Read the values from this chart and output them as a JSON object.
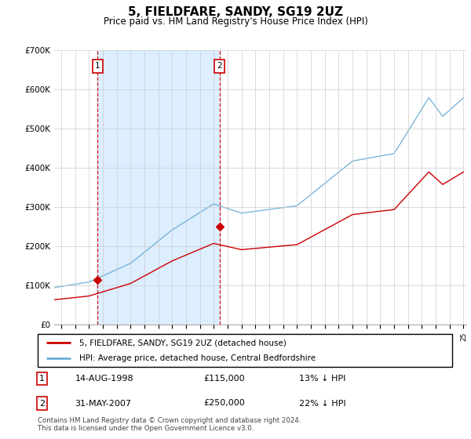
{
  "title": "5, FIELDFARE, SANDY, SG19 2UZ",
  "subtitle": "Price paid vs. HM Land Registry's House Price Index (HPI)",
  "legend_line1": "5, FIELDFARE, SANDY, SG19 2UZ (detached house)",
  "legend_line2": "HPI: Average price, detached house, Central Bedfordshire",
  "annotation1_date": "14-AUG-1998",
  "annotation1_price": "£115,000",
  "annotation1_hpi": "13% ↓ HPI",
  "annotation2_date": "31-MAY-2007",
  "annotation2_price": "£250,000",
  "annotation2_hpi": "22% ↓ HPI",
  "footnote": "Contains HM Land Registry data © Crown copyright and database right 2024.\nThis data is licensed under the Open Government Licence v3.0.",
  "hpi_color": "#6baed6",
  "price_color": "#cc0000",
  "vline_color": "#cc0000",
  "shade_color": "#ddeeff",
  "ylim": [
    0,
    700000
  ],
  "yticks": [
    0,
    100000,
    200000,
    300000,
    400000,
    500000,
    600000,
    700000
  ],
  "ytick_labels": [
    "£0",
    "£100K",
    "£200K",
    "£300K",
    "£400K",
    "£500K",
    "£600K",
    "£700K"
  ],
  "purchase1_year": 1998.62,
  "purchase1_price": 115000,
  "purchase2_year": 2007.41,
  "purchase2_price": 250000,
  "xlim_start": 1995.5,
  "xlim_end": 2025.2
}
